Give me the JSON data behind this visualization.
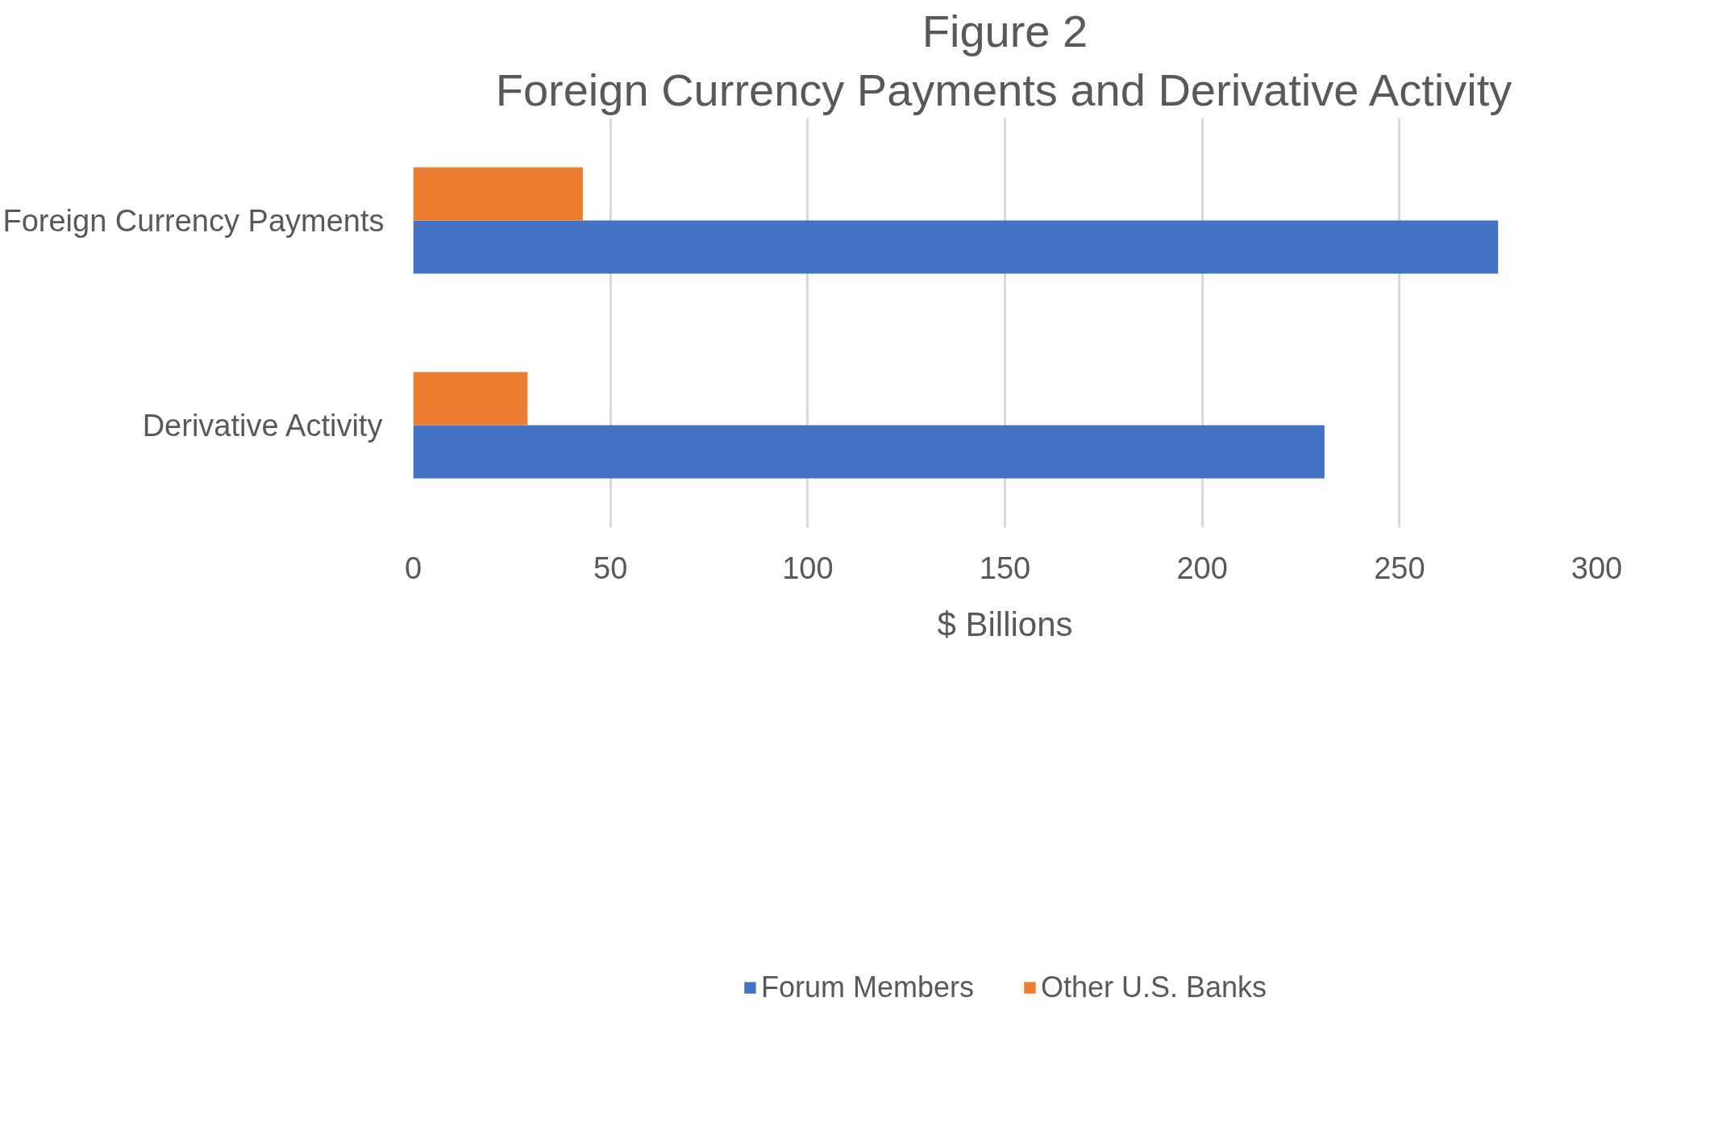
{
  "chart_data": {
    "type": "bar",
    "orientation": "horizontal",
    "title": "Figure 2",
    "subtitle": "Foreign Currency Payments and Derivative Activity",
    "xlabel": "$ Billions",
    "categories": [
      "Foreign Currency Payments",
      "Derivative Activity"
    ],
    "series": [
      {
        "name": "Forum Members",
        "color": "#4472c4",
        "values": [
          275,
          231
        ]
      },
      {
        "name": "Other U.S. Banks",
        "color": "#ed7d31",
        "values": [
          43,
          29
        ]
      }
    ],
    "xlim": [
      0,
      300
    ],
    "xticks": [
      0,
      50,
      100,
      150,
      200,
      250,
      300
    ],
    "grid": "x",
    "legend": "bottom"
  }
}
